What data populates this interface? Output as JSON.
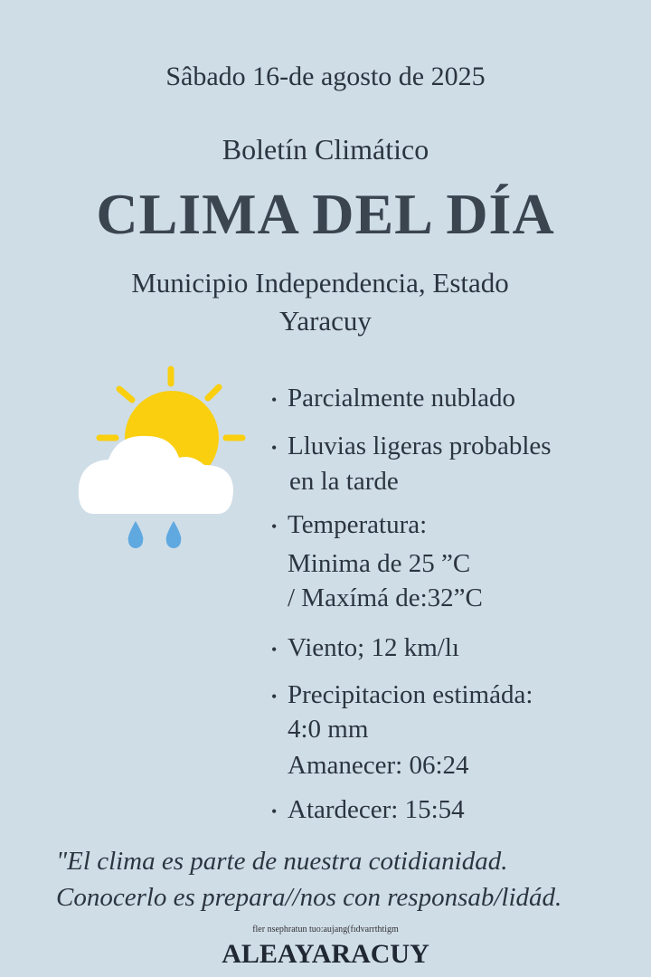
{
  "header": {
    "date": "Sâbado 16-de agosto de 2025",
    "subtitle": "Boletín Climático",
    "title": "CLIMA DEL DÍA",
    "location_line1": "Municipio Independencia, Estado",
    "location_line2": "Yaracuy"
  },
  "icon": {
    "name": "sun-behind-cloud-with-rain-icon",
    "sun_color": "#f9cf10",
    "cloud_color": "#ffffff",
    "drop_color": "#5fa9e0"
  },
  "details": [
    {
      "lines": [
        "Parcialmente nublado"
      ]
    },
    {
      "lines": [
        "Lluvias ligeras probables",
        "en la tarde"
      ]
    },
    {
      "lines": [
        "Temperatura:",
        "Minima de 25 ˮC",
        "/ Maxímá de:32ˮC"
      ]
    },
    {
      "lines": [
        "Viento; 12 km/lı"
      ]
    },
    {
      "lines": [
        "Precipitacion estimáda:",
        "4:0 mm",
        "Amanecer: 06:24"
      ]
    },
    {
      "lines": [
        "Atardecer: 15:54"
      ]
    }
  ],
  "quote": {
    "line1": "\"El clima es parte de nuestra cotidianidad.",
    "line2": "Conocerlo es prepara//nos con responsab/lidád."
  },
  "footer": {
    "small_text": "fler nsephratun tuo:aujang(fıdvarrthtigm",
    "brand": "ALEAYARACUY"
  }
}
